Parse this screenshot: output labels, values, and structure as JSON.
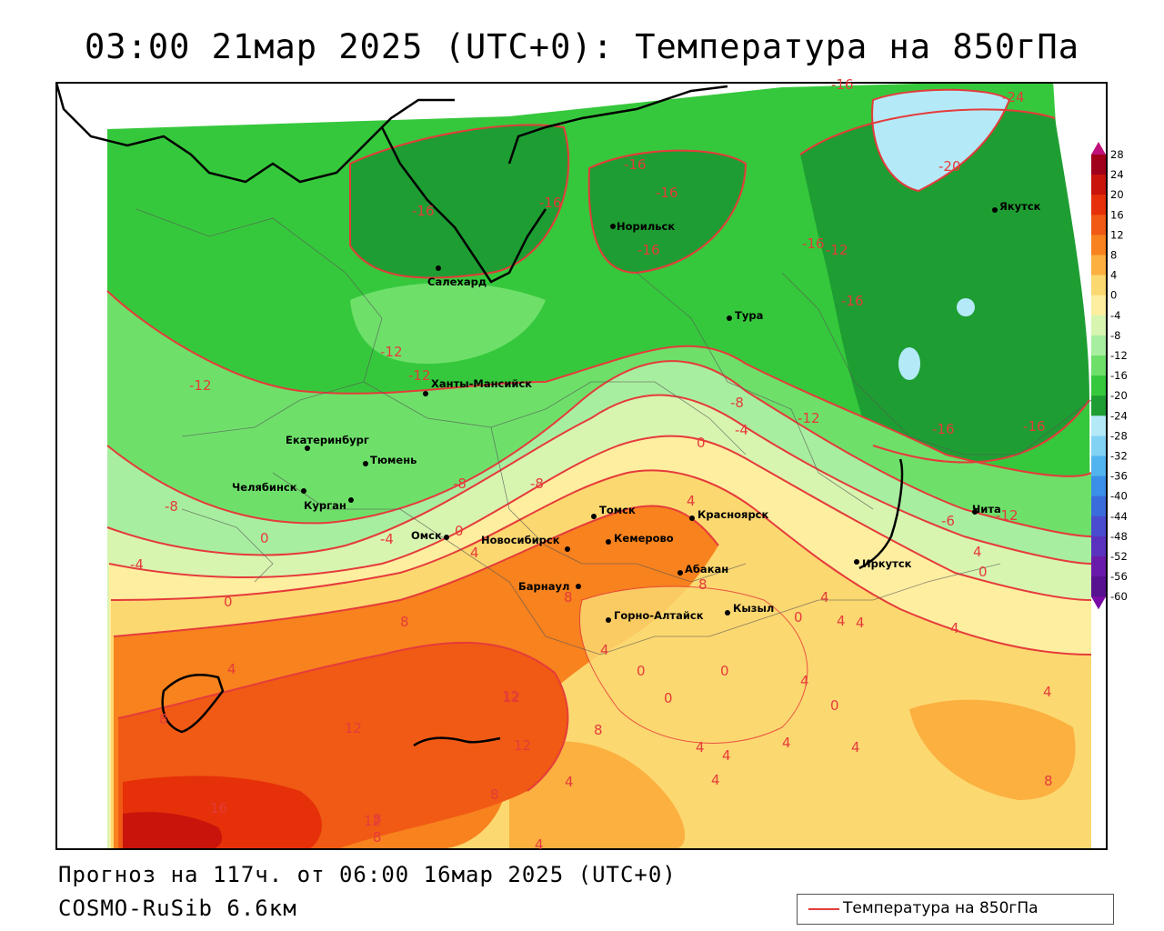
{
  "title": "03:00 21мар 2025 (UTC+0): Температура на 850гПа",
  "forecast_line": "Прогноз на 117ч. от 06:00 16мар 2025 (UTC+0)",
  "model_line": "COSMO-RuSib 6.6км",
  "legend": {
    "label": "Температура на 850гПа",
    "line_color": "#e53b3b"
  },
  "color_scale": {
    "ticks": [
      "28",
      "24",
      "20",
      "16",
      "12",
      "8",
      "4",
      "0",
      "-4",
      "-8",
      "-12",
      "-16",
      "-20",
      "-24",
      "-28",
      "-32",
      "-36",
      "-40",
      "-44",
      "-48",
      "-52",
      "-56",
      "-60"
    ],
    "colors": [
      "#a0001a",
      "#c8140a",
      "#e6300a",
      "#f05a14",
      "#f7821e",
      "#fbb040",
      "#fcd870",
      "#fdeea0",
      "#d8f5b0",
      "#a8eea0",
      "#6ee06a",
      "#36c83c",
      "#1e9e32",
      "#b4eaf8",
      "#82d2f4",
      "#52b4ee",
      "#3a8fe6",
      "#3a6cdc",
      "#4a4ccf",
      "#5a32bf",
      "#6a1aa8",
      "#58128f"
    ]
  },
  "cities": [
    {
      "name": "Салехард"
    },
    {
      "name": "Норильск"
    },
    {
      "name": "Якутск"
    },
    {
      "name": "Тура"
    },
    {
      "name": "Ханты-Мансийск"
    },
    {
      "name": "Екатеринбург"
    },
    {
      "name": "Тюмень"
    },
    {
      "name": "Челябинск"
    },
    {
      "name": "Курган"
    },
    {
      "name": "Омск"
    },
    {
      "name": "Новосибирск"
    },
    {
      "name": "Томск"
    },
    {
      "name": "Кемерово"
    },
    {
      "name": "Красноярск"
    },
    {
      "name": "Барнаул"
    },
    {
      "name": "Абакан"
    },
    {
      "name": "Горно-Алтайск"
    },
    {
      "name": "Кызыл"
    },
    {
      "name": "Иркутск"
    },
    {
      "name": "Чита"
    }
  ],
  "isotherm_labels": [
    "-16",
    "-24",
    "-20",
    "-16",
    "-16",
    "-16",
    "-16",
    "-16",
    "-16",
    "-16",
    "-12",
    "-12",
    "-12",
    "-8",
    "-12",
    "-4",
    "0",
    "-16",
    "-16",
    "-8",
    "-8",
    "-6",
    "-12",
    "-4",
    "0",
    "-4",
    "0",
    "4",
    "4",
    "8",
    "4",
    "8",
    "8",
    "4",
    "0",
    "0",
    "0",
    "4",
    "4",
    "0",
    "4",
    "0",
    "4",
    "12",
    "12",
    "12",
    "8",
    "16",
    "12",
    "8",
    "4",
    "4",
    "4",
    "4",
    "8",
    "4",
    "4",
    "8",
    "8",
    "-8",
    "-12",
    "0",
    "4",
    "0",
    "4",
    "4",
    "4",
    "12",
    "8"
  ]
}
